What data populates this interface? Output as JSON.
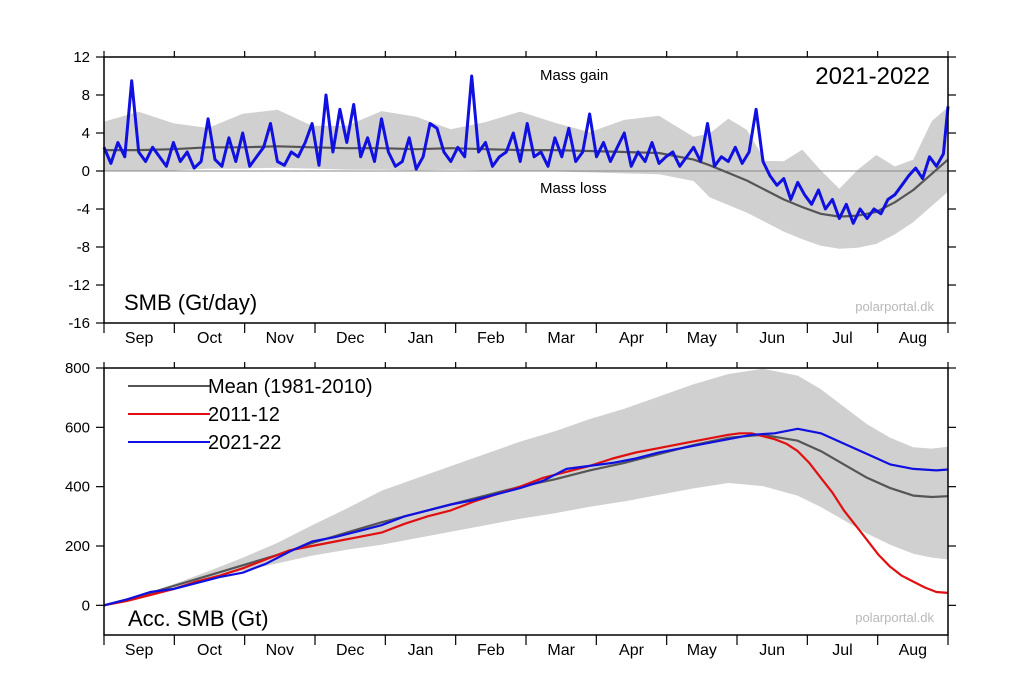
{
  "chart_data": [
    {
      "type": "line",
      "title": "2021-2022",
      "panel_label": "SMB (Gt/day)",
      "watermark": "polarportal.dk",
      "annotations": [
        "Mass gain",
        "Mass loss"
      ],
      "xlabel": "",
      "ylabel": "",
      "ylim": [
        -16,
        12
      ],
      "yticks": [
        "12",
        "8",
        "4",
        "0",
        "-4",
        "-8",
        "-12",
        "-16"
      ],
      "xticks": [
        "Sep",
        "Oct",
        "Nov",
        "Dec",
        "Jan",
        "Feb",
        "Mar",
        "Apr",
        "May",
        "Jun",
        "Jul",
        "Aug"
      ],
      "x_unit": "day of season (0 = 1 Sep, 365 = 31 Aug)",
      "xlim": [
        0,
        365
      ],
      "grid": false,
      "series": [
        {
          "name": "Mean (1981-2010)",
          "color": "#555555",
          "x": [
            0,
            15,
            30,
            45,
            60,
            75,
            90,
            105,
            120,
            135,
            150,
            165,
            180,
            195,
            210,
            225,
            240,
            255,
            262,
            270,
            278,
            286,
            294,
            302,
            310,
            318,
            326,
            334,
            342,
            350,
            358,
            365
          ],
          "y": [
            2.2,
            2.2,
            2.3,
            2.5,
            2.5,
            2.6,
            2.5,
            2.4,
            2.4,
            2.3,
            2.4,
            2.3,
            2.2,
            2.2,
            2.1,
            2.0,
            1.9,
            1.2,
            0.6,
            -0.2,
            -1.0,
            -2.0,
            -3.0,
            -3.8,
            -4.5,
            -4.8,
            -4.7,
            -4.3,
            -3.3,
            -2.0,
            -0.3,
            1.2
          ]
        },
        {
          "name": "2021-22",
          "color": "#1010e0",
          "x": [
            0,
            3,
            6,
            9,
            12,
            15,
            18,
            21,
            24,
            27,
            30,
            33,
            36,
            39,
            42,
            45,
            48,
            51,
            54,
            57,
            60,
            63,
            66,
            69,
            72,
            75,
            78,
            81,
            84,
            87,
            90,
            93,
            96,
            99,
            102,
            105,
            108,
            111,
            114,
            117,
            120,
            123,
            126,
            129,
            132,
            135,
            138,
            141,
            144,
            147,
            150,
            153,
            156,
            159,
            162,
            165,
            168,
            171,
            174,
            177,
            180,
            183,
            186,
            189,
            192,
            195,
            198,
            201,
            204,
            207,
            210,
            213,
            216,
            219,
            222,
            225,
            228,
            231,
            234,
            237,
            240,
            243,
            246,
            249,
            252,
            255,
            258,
            261,
            264,
            267,
            270,
            273,
            276,
            279,
            282,
            285,
            288,
            291,
            294,
            297,
            300,
            303,
            306,
            309,
            312,
            315,
            318,
            321,
            324,
            327,
            330,
            333,
            336,
            339,
            342,
            345,
            348,
            351,
            354,
            357,
            360,
            363,
            365
          ],
          "y": [
            2.5,
            0.8,
            3.0,
            1.5,
            9.5,
            2.0,
            1.0,
            2.5,
            1.5,
            0.5,
            3.0,
            1.0,
            2.0,
            0.3,
            1.0,
            5.5,
            1.2,
            0.5,
            3.5,
            1.0,
            4.0,
            0.5,
            1.5,
            2.5,
            5.0,
            1.0,
            0.6,
            2.0,
            1.5,
            3.0,
            5.0,
            0.6,
            8.0,
            2.0,
            6.5,
            3.0,
            7.0,
            1.5,
            3.5,
            1.0,
            5.5,
            2.0,
            0.5,
            1.0,
            3.5,
            0.2,
            1.5,
            5.0,
            4.5,
            2.0,
            1.0,
            2.5,
            1.5,
            10.0,
            2.0,
            3.0,
            0.5,
            1.5,
            2.0,
            4.0,
            1.0,
            5.0,
            1.5,
            2.0,
            0.5,
            3.5,
            1.5,
            4.5,
            1.0,
            2.0,
            6.0,
            1.5,
            3.0,
            1.0,
            2.5,
            4.0,
            0.5,
            2.0,
            1.0,
            3.0,
            0.8,
            1.5,
            2.0,
            0.5,
            1.5,
            2.5,
            1.0,
            5.0,
            0.5,
            1.5,
            1.0,
            2.5,
            0.8,
            2.0,
            6.5,
            1.0,
            -0.5,
            -1.5,
            -0.8,
            -3.0,
            -1.2,
            -2.5,
            -3.5,
            -2.0,
            -4.0,
            -3.0,
            -5.0,
            -3.5,
            -5.5,
            -4.0,
            -5.0,
            -4.0,
            -4.5,
            -3.0,
            -2.5,
            -1.5,
            -0.5,
            0.3,
            -0.8,
            1.5,
            0.5,
            1.8,
            6.8
          ]
        }
      ]
    },
    {
      "type": "line",
      "title": "",
      "panel_label": "Acc. SMB (Gt)",
      "watermark": "polarportal.dk",
      "xlabel": "",
      "ylabel": "",
      "ylim": [
        -100,
        800
      ],
      "yticks": [
        "800",
        "600",
        "400",
        "200",
        "0"
      ],
      "xticks": [
        "Sep",
        "Oct",
        "Nov",
        "Dec",
        "Jan",
        "Feb",
        "Mar",
        "Apr",
        "May",
        "Jun",
        "Jul",
        "Aug"
      ],
      "x_unit": "day of season (0 = 1 Sep, 365 = 31 Aug)",
      "xlim": [
        0,
        365
      ],
      "grid": false,
      "legend_position": "top-left",
      "series": [
        {
          "name": "Mean (1981-2010)",
          "color": "#555555",
          "x": [
            0,
            15,
            30,
            45,
            60,
            75,
            90,
            105,
            120,
            135,
            150,
            165,
            180,
            195,
            210,
            225,
            240,
            255,
            270,
            285,
            300,
            310,
            320,
            330,
            340,
            350,
            358,
            365
          ],
          "y": [
            0,
            30,
            65,
            100,
            135,
            170,
            210,
            245,
            280,
            310,
            340,
            370,
            400,
            425,
            455,
            480,
            510,
            540,
            565,
            575,
            555,
            520,
            475,
            430,
            395,
            370,
            365,
            368
          ]
        },
        {
          "name": "2011-12",
          "color": "#e01010",
          "x": [
            0,
            10,
            20,
            30,
            40,
            50,
            60,
            70,
            80,
            90,
            100,
            110,
            120,
            130,
            140,
            150,
            160,
            170,
            180,
            190,
            200,
            210,
            220,
            230,
            240,
            250,
            260,
            270,
            275,
            280,
            285,
            290,
            295,
            300,
            305,
            310,
            315,
            320,
            325,
            330,
            335,
            340,
            345,
            350,
            355,
            360,
            365
          ],
          "y": [
            0,
            15,
            35,
            55,
            80,
            100,
            125,
            155,
            185,
            200,
            215,
            230,
            245,
            275,
            300,
            320,
            350,
            375,
            400,
            430,
            450,
            470,
            495,
            515,
            530,
            545,
            560,
            575,
            580,
            580,
            570,
            560,
            545,
            520,
            480,
            430,
            380,
            320,
            270,
            220,
            170,
            130,
            100,
            80,
            60,
            45,
            42
          ]
        },
        {
          "name": "2021-22",
          "color": "#1010e0",
          "x": [
            0,
            10,
            20,
            30,
            40,
            50,
            60,
            70,
            80,
            90,
            100,
            110,
            120,
            130,
            140,
            150,
            160,
            170,
            180,
            190,
            200,
            210,
            220,
            230,
            240,
            250,
            260,
            270,
            280,
            290,
            300,
            310,
            320,
            330,
            340,
            350,
            360,
            365
          ],
          "y": [
            0,
            20,
            45,
            55,
            75,
            95,
            110,
            140,
            180,
            215,
            230,
            250,
            270,
            300,
            320,
            340,
            355,
            375,
            395,
            420,
            460,
            470,
            480,
            495,
            515,
            530,
            545,
            560,
            575,
            580,
            595,
            580,
            545,
            510,
            475,
            460,
            455,
            458
          ]
        }
      ]
    }
  ]
}
